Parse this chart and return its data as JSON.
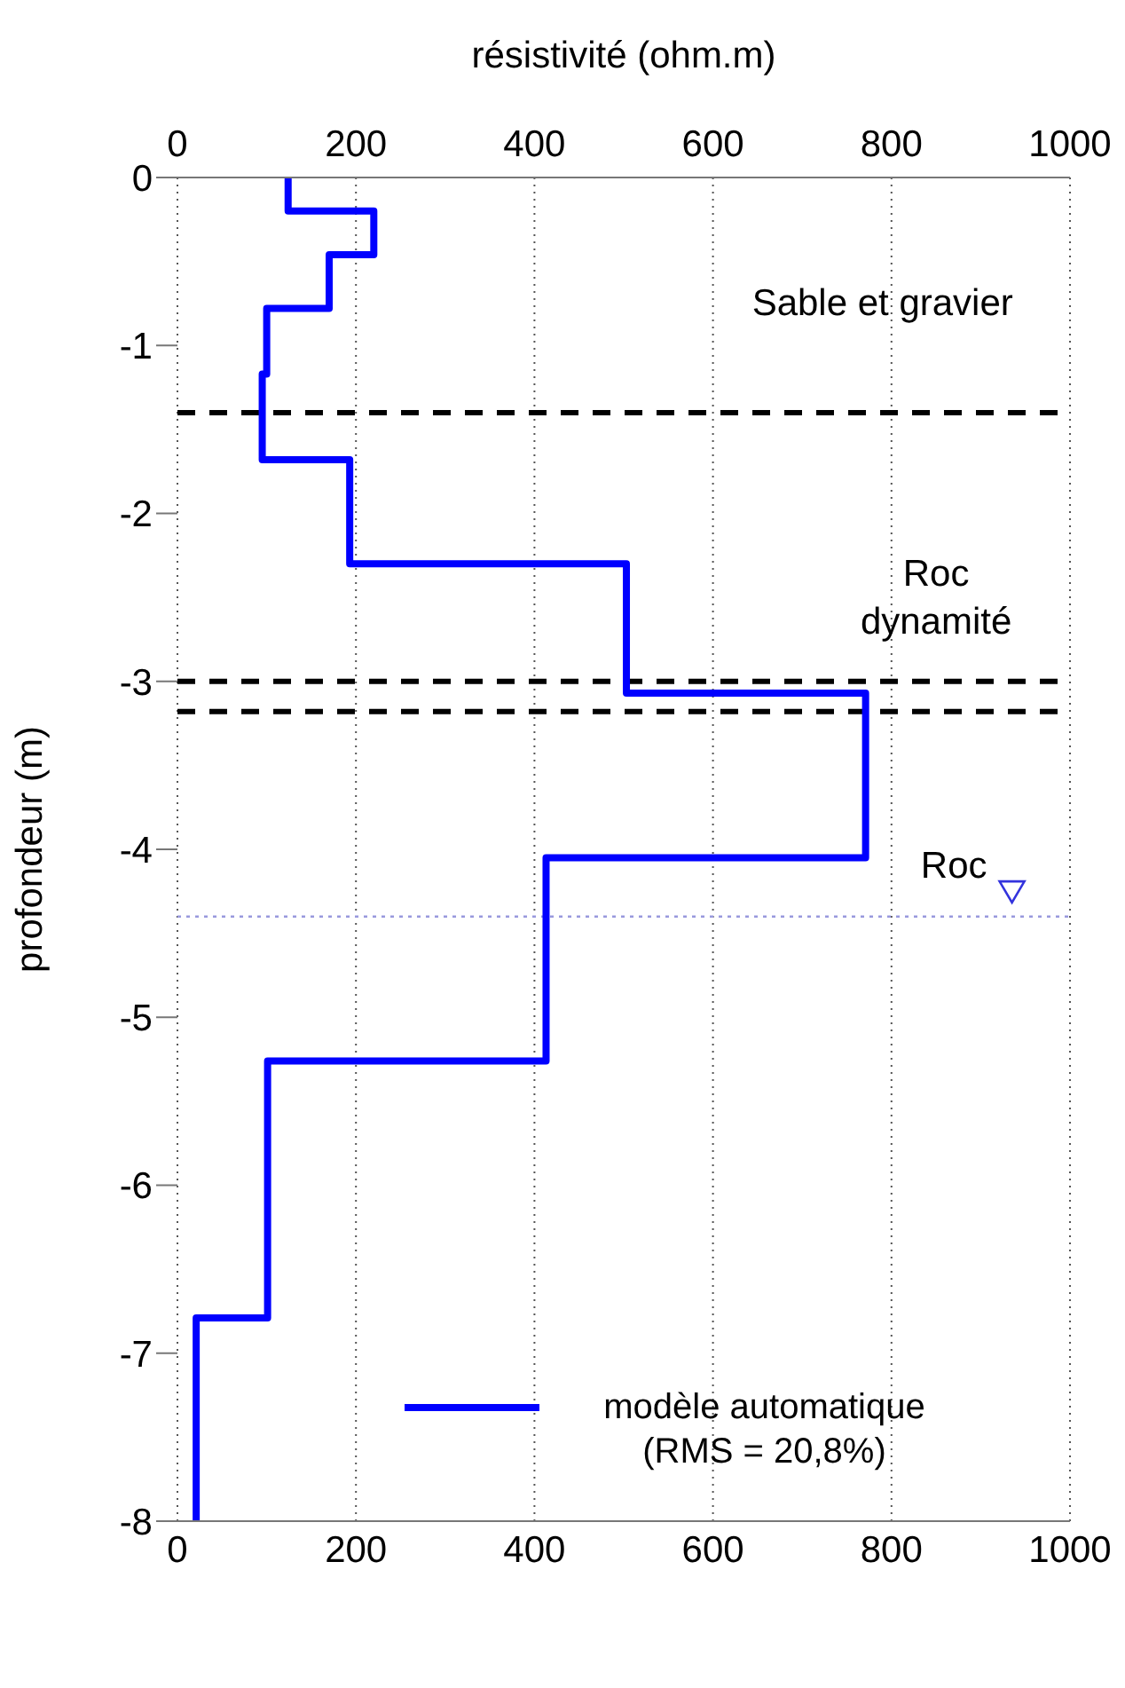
{
  "chart_data": {
    "type": "line",
    "xlabel": "résistivité (ohm.m)",
    "ylabel": "profondeur (m)",
    "xlim": [
      0,
      1000
    ],
    "xticks": [
      0,
      200,
      400,
      600,
      800,
      1000
    ],
    "x2lim": [
      0,
      1000
    ],
    "x2ticks": [
      0,
      200,
      400,
      600,
      800,
      1000
    ],
    "ylim": [
      -8,
      0
    ],
    "yticks": [
      0,
      -1,
      -2,
      -3,
      -4,
      -5,
      -6,
      -7,
      -8
    ],
    "grid": "x",
    "legend": "bottom right",
    "line_style": "solid",
    "marker": "none",
    "series": [
      {
        "name": "modèle automatique (RMS = 20,8%)",
        "color": "#0000ff",
        "x": [
          124,
          124,
          220,
          220,
          170,
          170,
          100,
          100,
          95,
          95,
          193,
          193,
          503,
          503,
          771,
          771,
          413,
          413,
          101,
          101,
          21,
          21
        ],
        "values": [
          0,
          -0.2,
          -0.2,
          -0.46,
          -0.46,
          -0.78,
          -0.78,
          -1.17,
          -1.17,
          -1.68,
          -1.68,
          -2.3,
          -2.3,
          -3.07,
          -3.07,
          -4.05,
          -4.05,
          -5.26,
          -5.26,
          -6.79,
          -6.79,
          -8
        ]
      },
      {
        "type": "scatter",
        "color": "#3333dd",
        "marker": "triangle",
        "x": [
          935
        ],
        "values": [
          -4.25
        ]
      }
    ],
    "ref_lines": [
      {
        "axis": "y",
        "value": -1.4,
        "color": "#000000",
        "line_style": "dashed"
      },
      {
        "axis": "y",
        "value": -3.0,
        "color": "#000000",
        "line_style": "dashed"
      },
      {
        "axis": "y",
        "value": -3.18,
        "color": "#000000",
        "line_style": "dashed"
      },
      {
        "axis": "y",
        "value": -4.4,
        "color": "#9999dd",
        "line_style": "dotted"
      }
    ],
    "annotations": [
      "Sable et gravier",
      "Roc\ndynamité",
      "Roc"
    ]
  }
}
